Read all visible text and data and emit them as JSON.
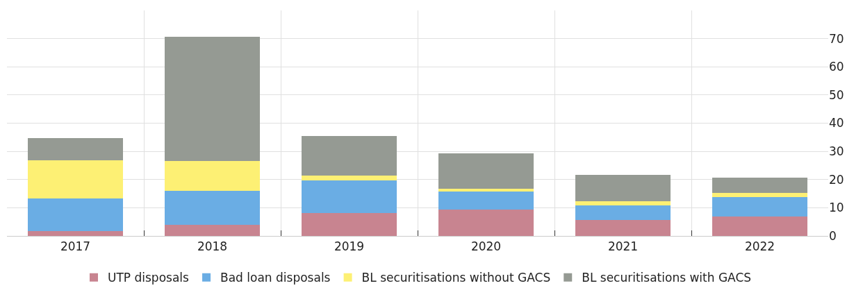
{
  "chart_data": {
    "type": "bar",
    "stacked": true,
    "categories": [
      "2017",
      "2018",
      "2019",
      "2020",
      "2021",
      "2022"
    ],
    "series": [
      {
        "name": "UTP disposals",
        "color": "#c88490",
        "values": [
          1.8,
          4.0,
          8.2,
          9.4,
          5.7,
          6.9
        ]
      },
      {
        "name": "Bad loan disposals",
        "color": "#6aade4",
        "values": [
          11.6,
          11.9,
          11.6,
          6.4,
          5.2,
          7.0
        ]
      },
      {
        "name": "BL securitisations without GACS",
        "color": "#fdf074",
        "values": [
          13.4,
          10.8,
          1.6,
          1.0,
          1.4,
          1.4
        ]
      },
      {
        "name": "BL securitisations with GACS",
        "color": "#959a93",
        "values": [
          8.0,
          43.9,
          14.1,
          12.6,
          9.4,
          5.3
        ]
      }
    ],
    "ylim": [
      0,
      80
    ],
    "yticks": [
      0,
      10,
      20,
      30,
      40,
      50,
      60,
      70
    ],
    "grid": true,
    "legend": "bottom"
  }
}
